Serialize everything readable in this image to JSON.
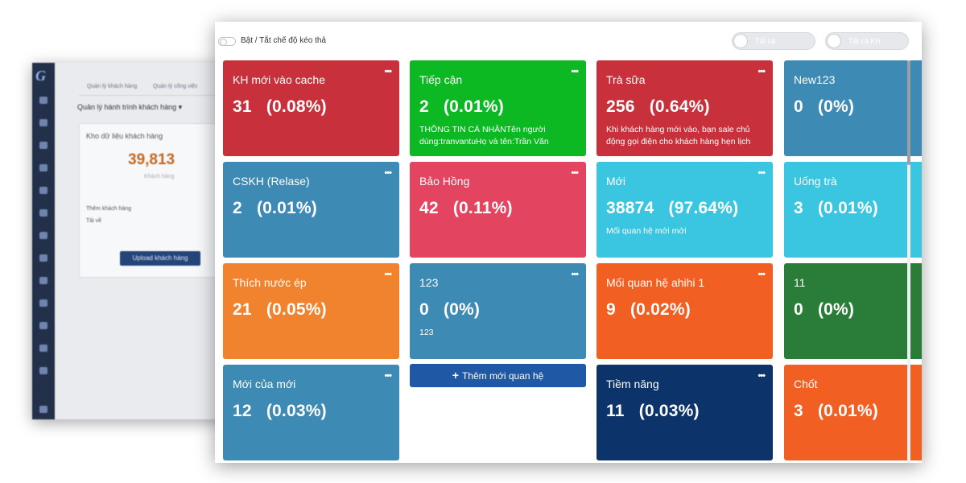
{
  "background_app": {
    "tabs": [
      "Quản lý khách hàng",
      "Quản lý công việc"
    ],
    "dropdown": "Quản lý hành trình khách hàng ▾",
    "panel_title": "Kho dữ liệu khách hàng",
    "big_number": "39,813",
    "big_number_sub": "Khách hàng",
    "links": [
      "Thêm khách hàng",
      "Tải về"
    ],
    "upload_button": "Upload khách hàng"
  },
  "toolbar": {
    "drag_mode_label": "Bật / Tắt chế độ kéo thả",
    "filter_all": "Tất cả",
    "filter_all_kh": "Tất cả KH"
  },
  "menu_glyph": "•••",
  "add_button": {
    "plus": "+",
    "label": "Thêm mới quan hệ"
  },
  "columns": [
    [
      {
        "title": "KH mới vào cache",
        "value": "31   (0.08%)",
        "desc": "",
        "color": "#c8313b"
      },
      {
        "title": "CSKH (Relase)",
        "value": "2   (0.01%)",
        "desc": "",
        "color": "#3d8ab5"
      },
      {
        "title": "Thích nước ép",
        "value": "21   (0.05%)",
        "desc": "",
        "color": "#f2832e"
      },
      {
        "title": "Mới của mới",
        "value": "12   (0.03%)",
        "desc": "",
        "color": "#3d8ab5"
      }
    ],
    [
      {
        "title": "Tiếp cận",
        "value": "2   (0.01%)",
        "desc": "THÔNG TIN CÁ NHÂNTên người dùng:tranvantuHọ và tên:Trần Văn",
        "color": "#0db923"
      },
      {
        "title": "Bảo Hồng",
        "value": "42   (0.11%)",
        "desc": "",
        "color": "#e34560"
      },
      {
        "title": "123",
        "value": "0   (0%)",
        "desc": "123",
        "color": "#3d8ab5"
      }
    ],
    [
      {
        "title": "Trà sữa",
        "value": "256   (0.64%)",
        "desc": "Khi khách hàng mới vào, bạn sale chủ động gọi điện cho khách hàng hẹn lịch",
        "color": "#c8313b"
      },
      {
        "title": "Mới",
        "value": "38874   (97.64%)",
        "desc": "Mối quan hệ mới mới",
        "color": "#3ac6e0"
      },
      {
        "title": "Mối quan hệ ahihi 1",
        "value": "9   (0.02%)",
        "desc": "",
        "color": "#f15f22"
      },
      {
        "title": "Tiềm năng",
        "value": "11   (0.03%)",
        "desc": "",
        "color": "#0c336a"
      }
    ],
    [
      {
        "title": "New123",
        "value": "0   (0%)",
        "desc": "",
        "color": "#3d8ab5"
      },
      {
        "title": "Uống trà",
        "value": "3   (0.01%)",
        "desc": "",
        "color": "#3ac6e0"
      },
      {
        "title": "11",
        "value": "0   (0%)",
        "desc": "",
        "color": "#2a7d38"
      },
      {
        "title": "Chốt",
        "value": "3   (0.01%)",
        "desc": "",
        "color": "#f15f22"
      }
    ]
  ]
}
